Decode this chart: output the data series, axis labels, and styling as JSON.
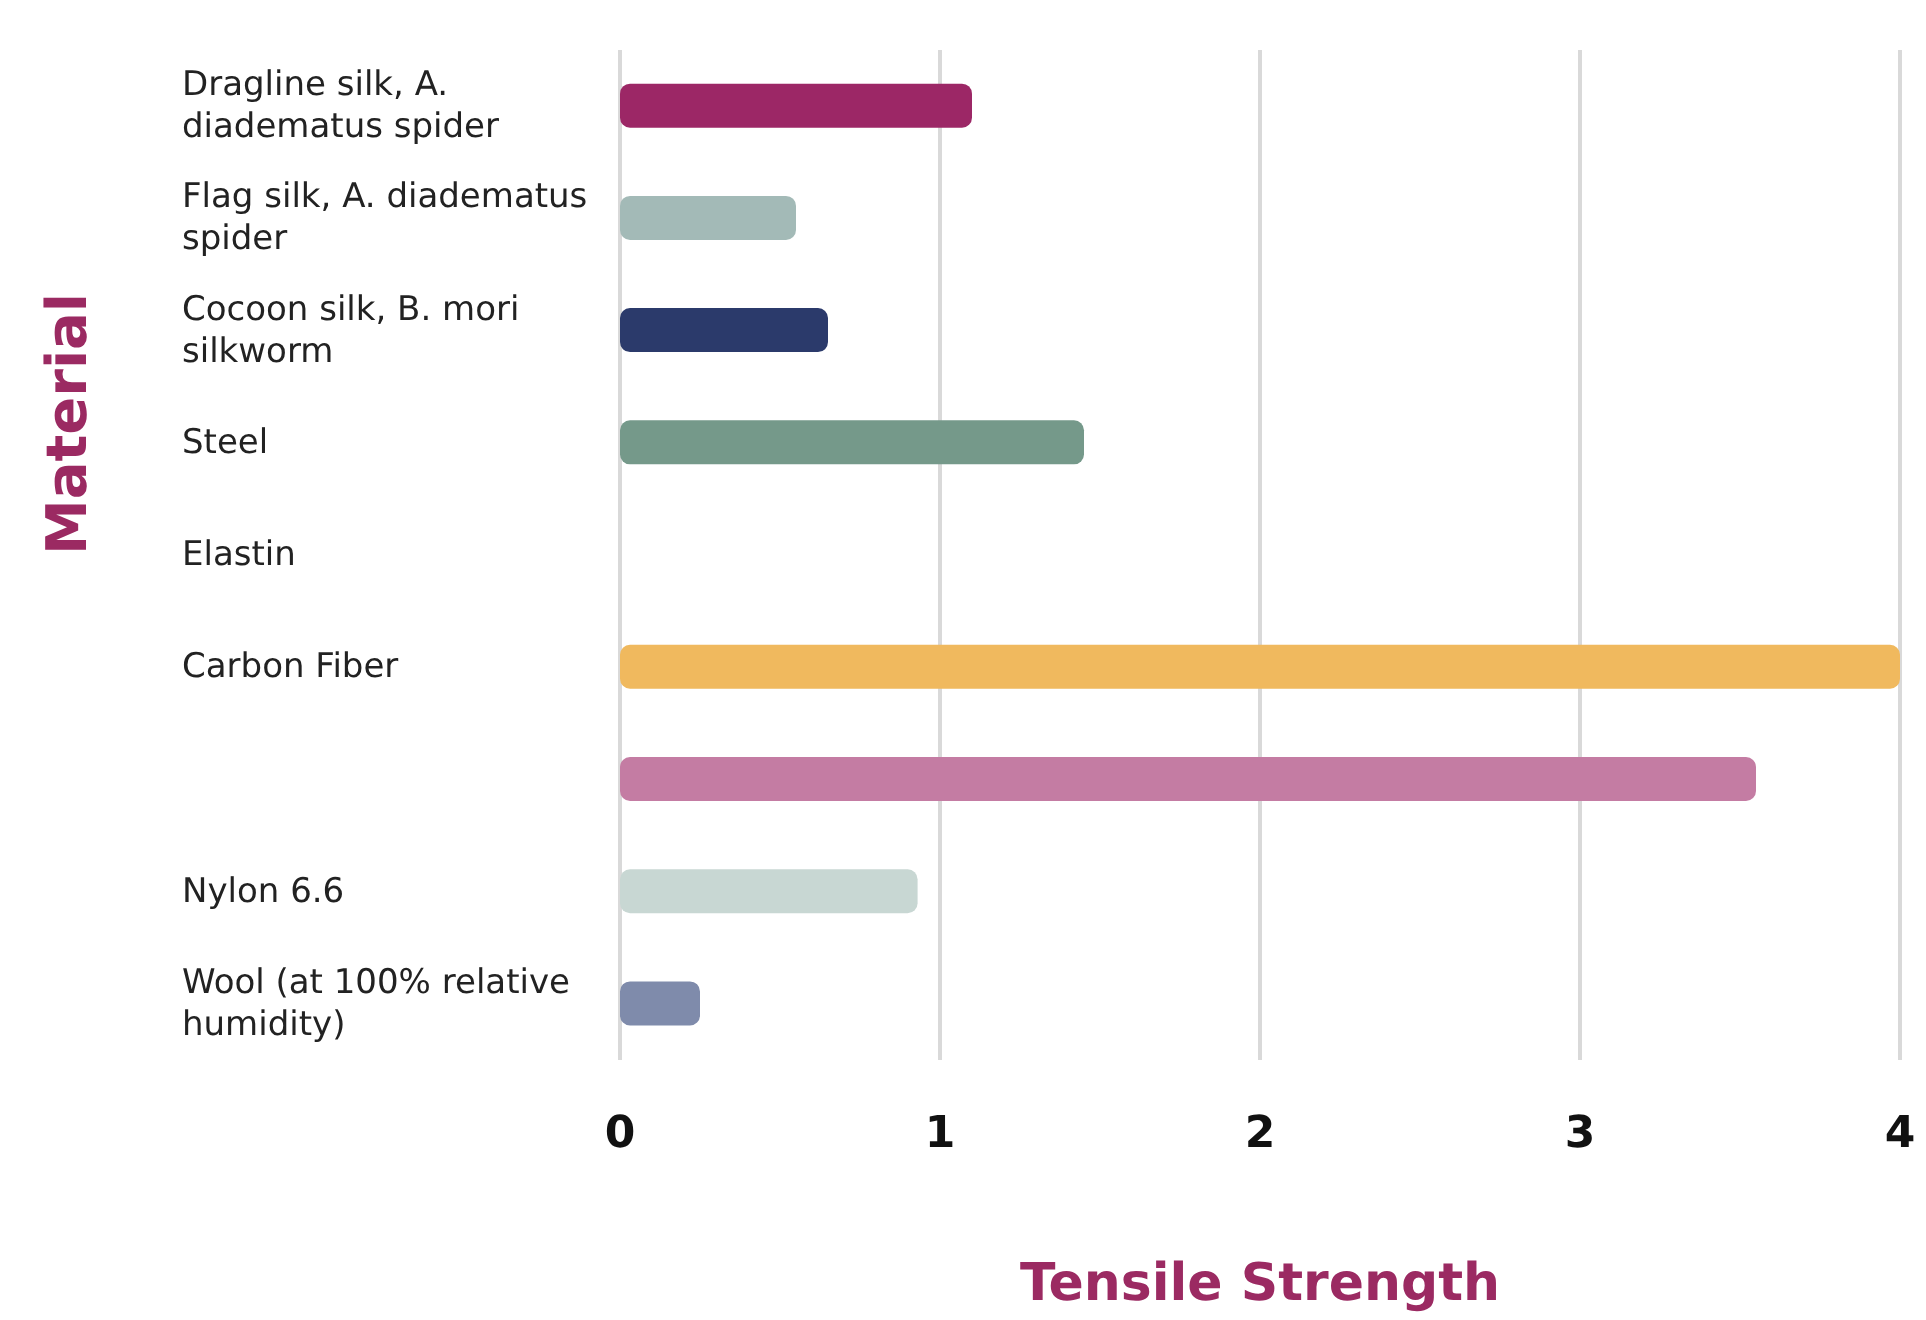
{
  "chart_data": {
    "type": "bar",
    "orientation": "horizontal",
    "xlabel": "Tensile Strength",
    "ylabel": "Material",
    "categories": [
      "Dragline silk, A. diadematus spider",
      "Flag silk, A. diadematus spider",
      "Cocoon silk, B. mori silkworm",
      "Steel",
      "Elastin",
      "Carbon Fiber",
      null,
      "Nylon 6.6",
      "Wool (at 100% relative humidity)"
    ],
    "values": [
      1.1,
      0.55,
      0.65,
      1.45,
      0,
      4.0,
      3.55,
      0.93,
      0.25
    ],
    "colors": [
      "#9c2766",
      "#a3bab7",
      "#2b3a6b",
      "#75998a",
      "#cccccc",
      "#f0b95e",
      "#c47ca3",
      "#c8d7d3",
      "#7f8bab"
    ],
    "xlim": [
      0,
      4
    ],
    "xticks": [
      0,
      1,
      2,
      3,
      4
    ],
    "grid": "x"
  }
}
